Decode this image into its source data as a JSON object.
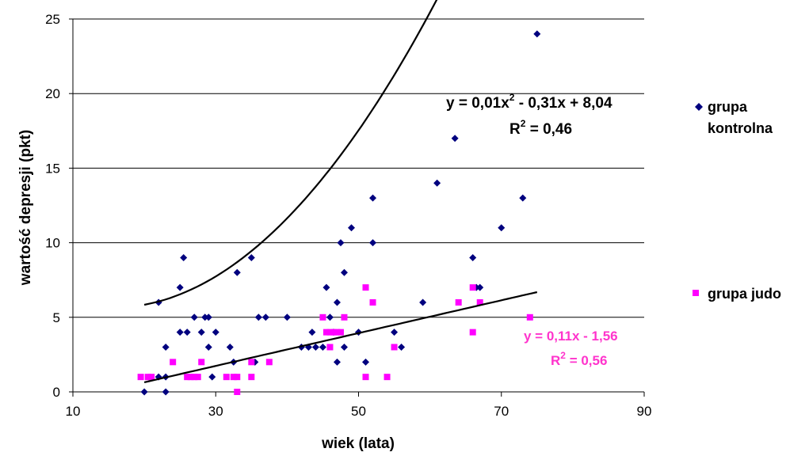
{
  "chart_data": {
    "type": "scatter",
    "xlabel": "wiek (lata)",
    "ylabel": "wartość depresji (pkt)",
    "xlim": [
      10,
      90
    ],
    "ylim": [
      0,
      25
    ],
    "xticks": [
      "10",
      "30",
      "50",
      "70",
      "90"
    ],
    "yticks": [
      "0",
      "5",
      "10",
      "15",
      "20",
      "25"
    ],
    "grid": "horizontal",
    "legend_position": "right",
    "series": [
      {
        "name": "grupa kontrolna",
        "name_lines": [
          "grupa",
          "kontrolna"
        ],
        "marker": "diamond",
        "color": "#00007f",
        "points": [
          [
            20,
            0
          ],
          [
            22,
            6
          ],
          [
            22,
            1
          ],
          [
            23,
            1
          ],
          [
            23,
            3
          ],
          [
            23,
            0
          ],
          [
            25,
            7
          ],
          [
            25,
            4
          ],
          [
            25.5,
            9
          ],
          [
            26,
            4
          ],
          [
            27,
            5
          ],
          [
            28,
            4
          ],
          [
            28.5,
            5
          ],
          [
            29,
            5
          ],
          [
            29,
            3
          ],
          [
            29.5,
            1
          ],
          [
            30,
            4
          ],
          [
            32,
            3
          ],
          [
            32.5,
            2
          ],
          [
            33,
            8
          ],
          [
            35,
            9
          ],
          [
            35.5,
            2
          ],
          [
            36,
            5
          ],
          [
            37,
            5
          ],
          [
            40,
            5
          ],
          [
            42,
            3
          ],
          [
            43,
            3
          ],
          [
            43.5,
            4
          ],
          [
            44,
            3
          ],
          [
            45,
            3
          ],
          [
            45.5,
            7
          ],
          [
            46,
            5
          ],
          [
            46.5,
            4
          ],
          [
            47,
            6
          ],
          [
            47,
            2
          ],
          [
            47.5,
            10
          ],
          [
            48,
            3
          ],
          [
            48,
            8
          ],
          [
            49,
            11
          ],
          [
            50,
            4
          ],
          [
            51,
            2
          ],
          [
            52,
            13
          ],
          [
            52,
            10
          ],
          [
            55,
            4
          ],
          [
            56,
            3
          ],
          [
            59,
            6
          ],
          [
            61,
            14
          ],
          [
            63.5,
            17
          ],
          [
            66,
            9
          ],
          [
            66.5,
            7
          ],
          [
            67,
            7
          ],
          [
            70,
            11
          ],
          [
            73,
            13
          ],
          [
            75,
            24
          ]
        ],
        "trendline": {
          "type": "poly2",
          "coef": [
            8.04,
            -0.31,
            0.01
          ],
          "x_range": [
            20,
            78
          ],
          "equation_parts": [
            "y = 0,01x",
            "2",
            " - 0,31x + 8,04"
          ],
          "r2_parts": [
            "R",
            "2",
            " = 0,46"
          ]
        }
      },
      {
        "name": "grupa judo",
        "marker": "square",
        "color": "#ff00ff",
        "points": [
          [
            19.5,
            1
          ],
          [
            20.5,
            1
          ],
          [
            21,
            1
          ],
          [
            24,
            2
          ],
          [
            26,
            1
          ],
          [
            26.5,
            1
          ],
          [
            27.5,
            1
          ],
          [
            27,
            1
          ],
          [
            28,
            2
          ],
          [
            31.5,
            1
          ],
          [
            32.5,
            1
          ],
          [
            33,
            0
          ],
          [
            33,
            1
          ],
          [
            35,
            1
          ],
          [
            35,
            2
          ],
          [
            37.5,
            2
          ],
          [
            45,
            5
          ],
          [
            45.5,
            4
          ],
          [
            46,
            4
          ],
          [
            46,
            3
          ],
          [
            46.5,
            4
          ],
          [
            47,
            4
          ],
          [
            47.5,
            4
          ],
          [
            48,
            5
          ],
          [
            51,
            7
          ],
          [
            51,
            1
          ],
          [
            52,
            6
          ],
          [
            54,
            1
          ],
          [
            55,
            3
          ],
          [
            64,
            6
          ],
          [
            66,
            7
          ],
          [
            66,
            4
          ],
          [
            67,
            6
          ],
          [
            74,
            5
          ]
        ],
        "trendline": {
          "type": "linear",
          "coef": [
            -1.56,
            0.11
          ],
          "x_range": [
            20,
            75
          ],
          "equation_parts": [
            "y = 0,11x - 1,56"
          ],
          "r2_parts": [
            "R",
            "2",
            " = 0,56"
          ]
        }
      }
    ]
  }
}
